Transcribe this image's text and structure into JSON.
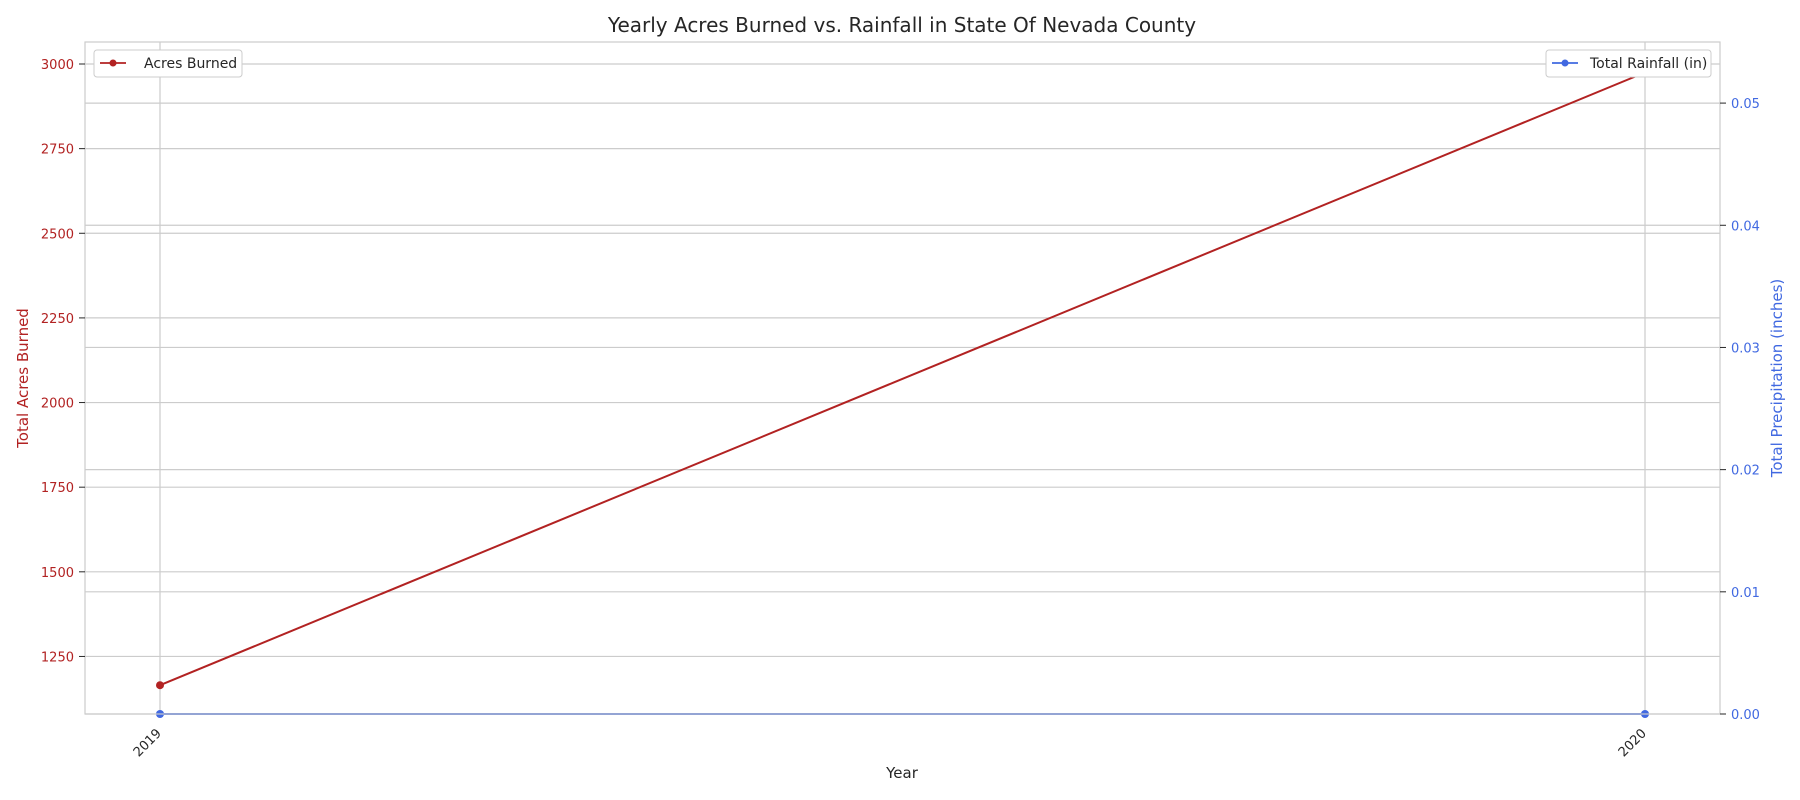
{
  "chart_data": {
    "type": "line",
    "title": "Yearly Acres Burned vs. Rainfall in State Of Nevada County",
    "xlabel": "Year",
    "categories": [
      "2019",
      "2020"
    ],
    "y_left": {
      "label": "Total Acres Burned",
      "ylim": [
        1080,
        3065
      ],
      "ticks": [
        1250,
        1500,
        1750,
        2000,
        2250,
        2500,
        2750,
        3000
      ],
      "color": "#b22222"
    },
    "y_right": {
      "label": "Total Precipitation (inches)",
      "ylim": [
        0.0,
        0.055
      ],
      "ticks": [
        0.0,
        0.01,
        0.02,
        0.03,
        0.04,
        0.05
      ],
      "tick_labels": [
        "0.00",
        "0.01",
        "0.02",
        "0.03",
        "0.04",
        "0.05"
      ],
      "color": "#4169e1"
    },
    "series": [
      {
        "name": "Acres Burned",
        "axis": "left",
        "values": [
          1165,
          2975
        ],
        "color": "#b22222"
      },
      {
        "name": "Total Rainfall (in)",
        "axis": "right",
        "values": [
          0.0,
          0.0
        ],
        "color": "#4169e1"
      }
    ],
    "grid": true,
    "legends": [
      {
        "series": 0,
        "placement": "top-left"
      },
      {
        "series": 1,
        "placement": "top-right"
      }
    ]
  }
}
